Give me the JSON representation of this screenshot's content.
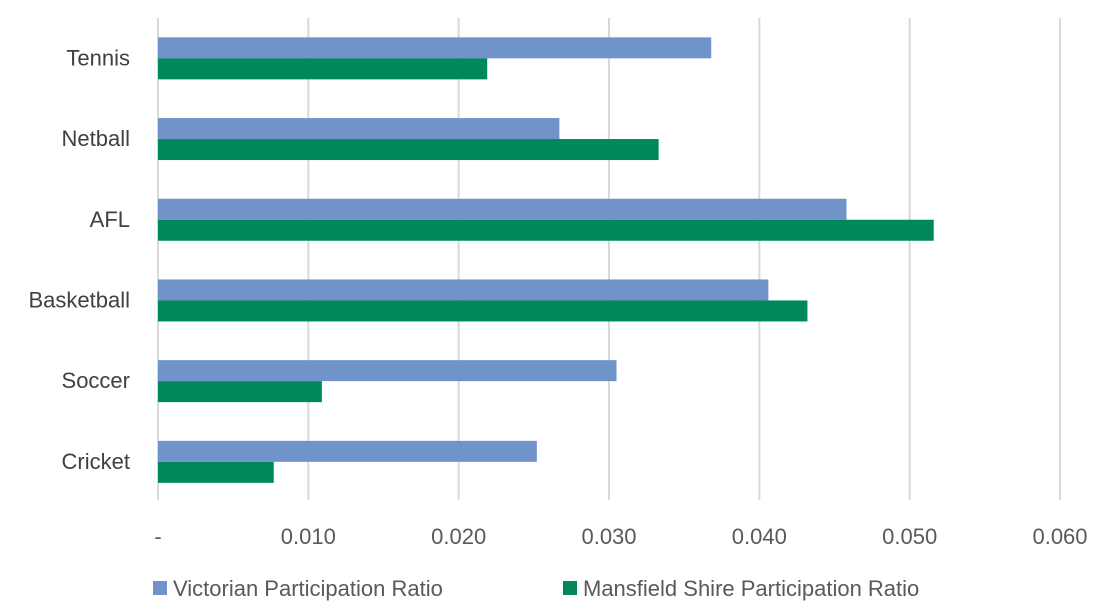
{
  "chart_data": {
    "type": "bar",
    "orientation": "horizontal",
    "title": "",
    "xlabel": "",
    "ylabel": "",
    "categories": [
      "Tennis",
      "Netball",
      "AFL",
      "Basketball",
      "Soccer",
      "Cricket"
    ],
    "series": [
      {
        "name": "Victorian Participation Ratio",
        "color": "#7094c9",
        "values": [
          0.0368,
          0.0267,
          0.0458,
          0.0406,
          0.0305,
          0.0252
        ]
      },
      {
        "name": "Mansfield Shire Participation Ratio",
        "color": "#00875a",
        "values": [
          0.0219,
          0.0333,
          0.0516,
          0.0432,
          0.0109,
          0.0077
        ]
      }
    ],
    "xlim": [
      0,
      0.06
    ],
    "xticks": [
      0,
      0.01,
      0.02,
      0.03,
      0.04,
      0.05,
      0.06
    ],
    "xtick_labels": [
      "-",
      "0.010",
      "0.020",
      "0.030",
      "0.040",
      "0.050",
      "0.060"
    ],
    "grid": "vertical",
    "legend_position": "bottom"
  }
}
